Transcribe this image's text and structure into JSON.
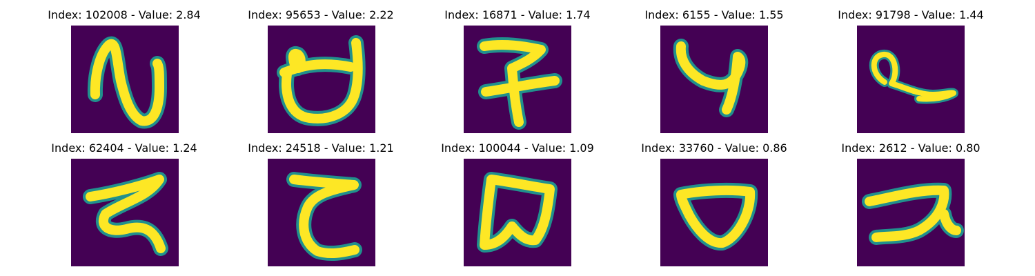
{
  "colors": {
    "background": "#440154",
    "stroke_core": "#fde725",
    "stroke_edge": "#21908d",
    "stroke_mid": "#5ec962"
  },
  "panels": [
    {
      "title": "Index: 102008 - Value: 2.84",
      "glyph": "handwritten-glyph-curve"
    },
    {
      "title": "Index: 95653 - Value: 2.22",
      "glyph": "handwritten-glyph-cup"
    },
    {
      "title": "Index: 16871 - Value: 1.74",
      "glyph": "handwritten-glyph-cross"
    },
    {
      "title": "Index: 6155 - Value: 1.55",
      "glyph": "handwritten-glyph-hook"
    },
    {
      "title": "Index: 91798 - Value: 1.44",
      "glyph": "handwritten-glyph-loop"
    },
    {
      "title": "Index: 62404 - Value: 1.24",
      "glyph": "handwritten-glyph-zigzag"
    },
    {
      "title": "Index: 24518 - Value: 1.21",
      "glyph": "handwritten-glyph-c"
    },
    {
      "title": "Index: 100044 - Value: 1.09",
      "glyph": "handwritten-glyph-box"
    },
    {
      "title": "Index: 33760 - Value: 0.86",
      "glyph": "handwritten-glyph-ring"
    },
    {
      "title": "Index: 2612 - Value: 0.80",
      "glyph": "handwritten-glyph-z"
    }
  ]
}
